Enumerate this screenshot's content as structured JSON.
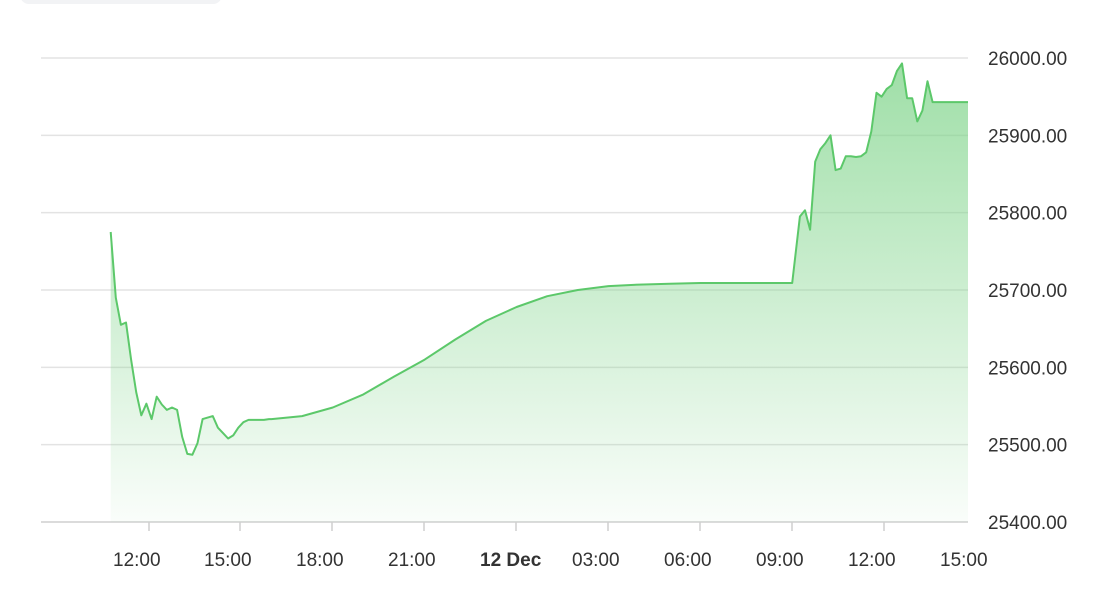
{
  "ui": {
    "accent_color": "#5cc86a",
    "fill_color": "#7fd48a"
  },
  "chart_data": {
    "type": "area",
    "title": "",
    "xlabel": "",
    "ylabel": "",
    "ylim": [
      25400,
      26000
    ],
    "x_ticks": [
      {
        "label": "12:00",
        "bold": false
      },
      {
        "label": "15:00",
        "bold": false
      },
      {
        "label": "18:00",
        "bold": false
      },
      {
        "label": "21:00",
        "bold": false
      },
      {
        "label": "12 Dec",
        "bold": true
      },
      {
        "label": "03:00",
        "bold": false
      },
      {
        "label": "06:00",
        "bold": false
      },
      {
        "label": "09:00",
        "bold": false
      },
      {
        "label": "12:00",
        "bold": false
      },
      {
        "label": "15:00",
        "bold": false
      }
    ],
    "y_ticks": [
      "25400.00",
      "25500.00",
      "25600.00",
      "25700.00",
      "25800.00",
      "25900.00",
      "26000.00"
    ],
    "grid": true,
    "series": [
      {
        "x": [
          "10:45",
          "10:55",
          "11:05",
          "11:15",
          "11:25",
          "11:35",
          "11:45",
          "11:55",
          "12:05",
          "12:15",
          "12:25",
          "12:35",
          "12:45",
          "12:55",
          "13:05",
          "13:15",
          "13:25",
          "13:35",
          "13:45",
          "13:55",
          "14:05",
          "14:15",
          "14:25",
          "14:35",
          "14:45",
          "14:55",
          "15:05",
          "15:15",
          "15:25",
          "15:35",
          "15:45",
          "15:55",
          "16:00",
          "17:00",
          "18:00",
          "19:00",
          "20:00",
          "21:00",
          "22:00",
          "23:00",
          "00:00",
          "01:00",
          "02:00",
          "03:00",
          "04:00",
          "05:00",
          "06:00",
          "07:00",
          "08:00",
          "09:00",
          "09:15",
          "09:25",
          "09:35",
          "09:45",
          "09:55",
          "10:05",
          "10:15",
          "10:25",
          "10:35",
          "10:45",
          "10:55",
          "11:05",
          "11:15",
          "11:25",
          "11:35",
          "11:45",
          "11:55",
          "12:05",
          "12:15",
          "12:25",
          "12:35",
          "12:45",
          "12:55",
          "13:05",
          "13:15",
          "13:25",
          "13:35",
          "13:45",
          "13:55",
          "14:05",
          "14:15",
          "14:25",
          "14:35",
          "14:45",
          "14:55",
          "15:05",
          "15:15",
          "15:25",
          "15:35",
          "15:45"
        ],
        "y": [
          25775,
          25690,
          25655,
          25658,
          25610,
          25568,
          25538,
          25553,
          25533,
          25562,
          25552,
          25545,
          25548,
          25545,
          25510,
          25488,
          25487,
          25502,
          25533,
          25535,
          25537,
          25522,
          25515,
          25508,
          25512,
          25522,
          25529,
          25532,
          25532,
          25532,
          25532,
          25533,
          25533,
          25537,
          25548,
          25565,
          25588,
          25610,
          25636,
          25660,
          25678,
          25692,
          25700,
          25705,
          25707,
          25708,
          25709,
          25709,
          25709,
          25709,
          25795,
          25803,
          25778,
          25866,
          25882,
          25890,
          25900,
          25855,
          25857,
          25873,
          25873,
          25872,
          25873,
          25878,
          25905,
          25955,
          25950,
          25960,
          25965,
          25983,
          25993,
          25948,
          25948,
          25918,
          25932,
          25970,
          25943,
          25943,
          25943,
          25943,
          25943,
          25943,
          25943,
          25943,
          25943,
          25943,
          25943,
          25943,
          25943,
          25943
        ]
      }
    ]
  }
}
